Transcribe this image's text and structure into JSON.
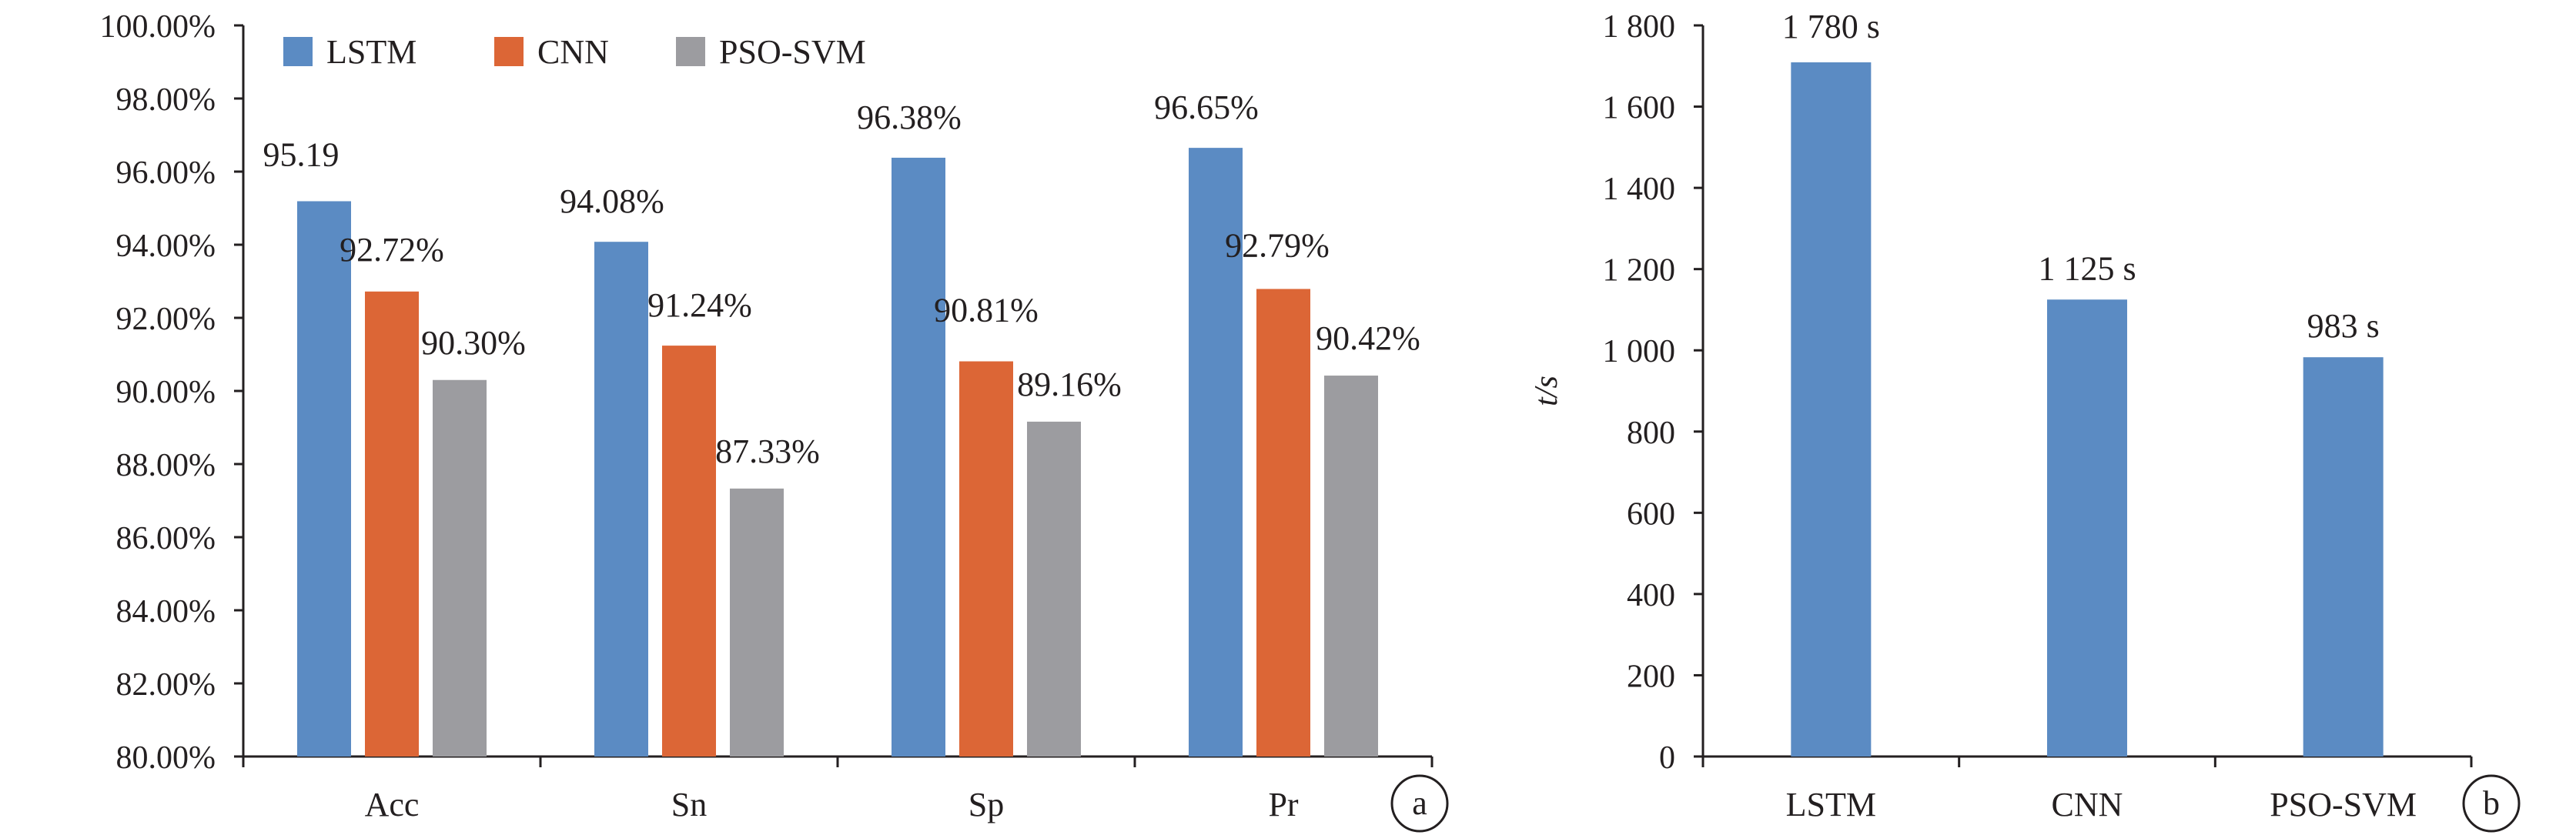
{
  "chart_data": [
    {
      "panel_label": "a",
      "type": "bar",
      "categories": [
        "Acc",
        "Sn",
        "Sp",
        "Pr"
      ],
      "series": [
        {
          "name": "LSTM",
          "color": "#5b8bc3",
          "values": [
            95.19,
            94.08,
            96.38,
            96.65
          ],
          "labels": [
            "95.19",
            "94.08%",
            "96.38%",
            "96.65%"
          ]
        },
        {
          "name": "CNN",
          "color": "#dc6636",
          "values": [
            92.72,
            91.24,
            90.81,
            92.79
          ],
          "labels": [
            "92.72%",
            "91.24%",
            "90.81%",
            "92.79%"
          ]
        },
        {
          "name": "PSO-SVM",
          "color": "#9c9ca0",
          "values": [
            90.3,
            87.33,
            89.16,
            90.42
          ],
          "labels": [
            "90.30%",
            "87.33%",
            "89.16%",
            "90.42%"
          ]
        }
      ],
      "ylim": [
        80,
        100
      ],
      "yticks": [
        "80.00%",
        "82.00%",
        "84.00%",
        "86.00%",
        "88.00%",
        "90.00%",
        "92.00%",
        "94.00%",
        "96.00%",
        "98.00%",
        "100.00%"
      ],
      "legend_position": "top",
      "grid": false
    },
    {
      "panel_label": "b",
      "type": "bar",
      "categories": [
        "LSTM",
        "CNN",
        "PSO-SVM"
      ],
      "series": [
        {
          "color": "#5b8bc3",
          "values": [
            1780,
            1125,
            983
          ],
          "labels": [
            "1 780 s",
            "1 125 s",
            "983 s"
          ]
        }
      ],
      "ylabel": "t/s",
      "ylim": [
        0,
        1800
      ],
      "yticks": [
        "0",
        "200",
        "400",
        "600",
        "800",
        "1 000",
        "1 200",
        "1 400",
        "1 600",
        "1 800"
      ],
      "grid": false
    }
  ]
}
